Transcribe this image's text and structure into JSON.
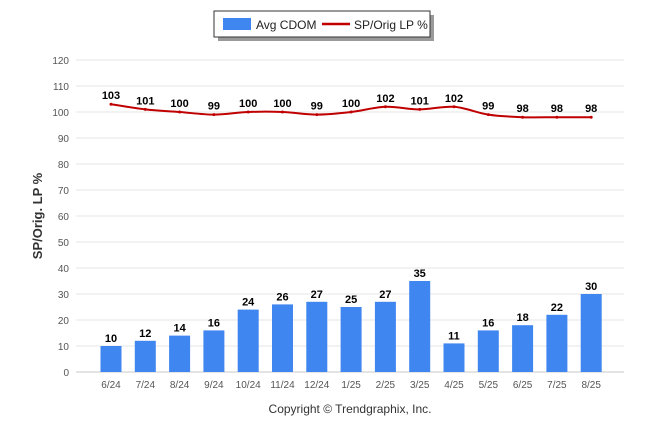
{
  "chart_data": {
    "type": "bar",
    "categories": [
      "6/24",
      "7/24",
      "8/24",
      "9/24",
      "10/24",
      "11/24",
      "12/24",
      "1/25",
      "2/25",
      "3/25",
      "4/25",
      "5/25",
      "6/25",
      "7/25",
      "8/25"
    ],
    "series": [
      {
        "name": "Avg CDOM",
        "type": "bar",
        "color": "#3f86f0",
        "values": [
          10,
          12,
          14,
          16,
          24,
          26,
          27,
          25,
          27,
          35,
          11,
          16,
          18,
          22,
          30
        ]
      },
      {
        "name": "SP/Orig LP %",
        "type": "line",
        "color": "#c00000",
        "values": [
          103,
          101,
          100,
          99,
          100,
          100,
          99,
          100,
          102,
          101,
          102,
          99,
          98,
          98,
          98
        ]
      }
    ],
    "ylabel": "SP/Orig. LP %",
    "xlabel": "",
    "ylim": [
      0,
      120
    ],
    "yticks": [
      0,
      10,
      20,
      30,
      40,
      50,
      60,
      70,
      80,
      90,
      100,
      110,
      120
    ],
    "grid": true,
    "legend_position": "top-center",
    "data_labels": true
  },
  "footer": {
    "copyright": "Copyright © Trendgraphix, Inc."
  }
}
